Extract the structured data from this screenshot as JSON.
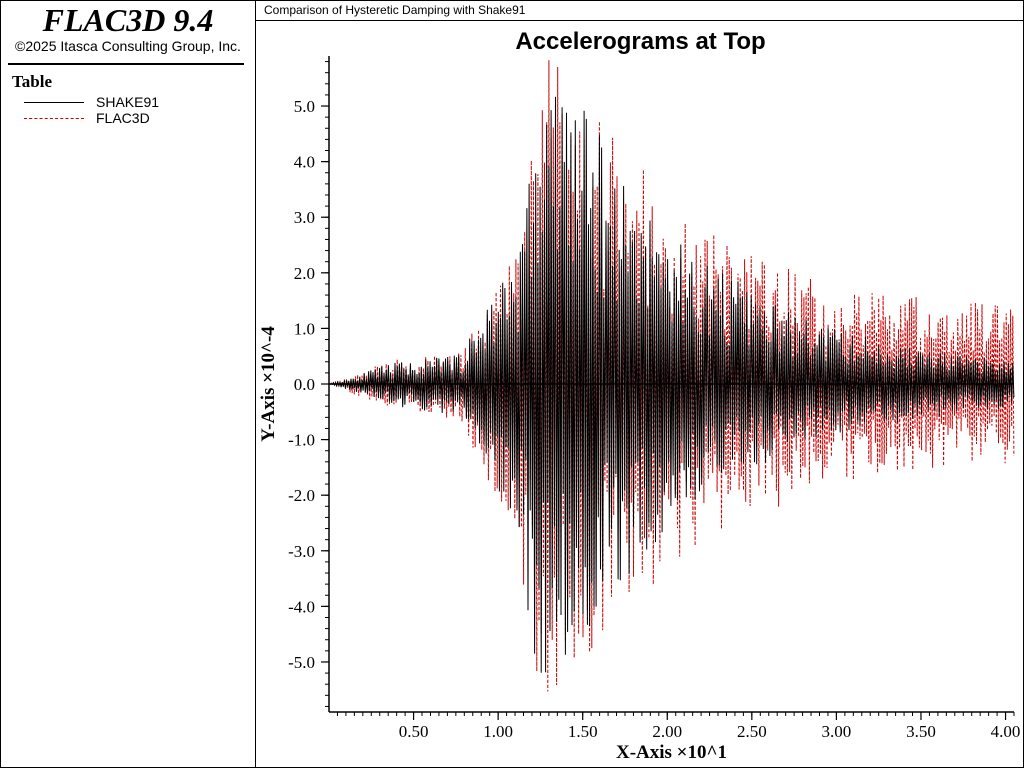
{
  "app": {
    "title": "FLAC3D 9.4",
    "copyright": "©2025 Itasca Consulting Group, Inc.",
    "panel_label": "Table"
  },
  "legend": [
    {
      "label": "SHAKE91",
      "color": "#000000",
      "style": "solid"
    },
    {
      "label": "FLAC3D",
      "color": "#cc0000",
      "style": "dashed"
    }
  ],
  "header": {
    "text": "Comparison of Hysteretic Damping with Shake91"
  },
  "chart_data": {
    "type": "line",
    "title": "Accelerograms at Top",
    "xlabel": "X-Axis ×10^1",
    "ylabel": "Y-Axis ×10^-4",
    "xlim": [
      0.0,
      4.05
    ],
    "ylim": [
      -5.9,
      5.9
    ],
    "x_ticks": [
      0.5,
      1.0,
      1.5,
      2.0,
      2.5,
      3.0,
      3.5,
      4.0
    ],
    "x_tick_labels": [
      "0.50",
      "1.00",
      "1.50",
      "2.00",
      "2.50",
      "3.00",
      "3.50",
      "4.00"
    ],
    "y_ticks": [
      5.0,
      4.0,
      3.0,
      2.0,
      1.0,
      0.0,
      -1.0,
      -2.0,
      -3.0,
      -4.0,
      -5.0
    ],
    "y_tick_labels": [
      "5.0",
      "4.0",
      "3.0",
      "2.0",
      "1.0",
      "0.0",
      "-1.0",
      "-2.0",
      "-3.0",
      "-4.0",
      "-5.0"
    ],
    "grid": false,
    "legend_position": "left panel",
    "series": [
      {
        "name": "SHAKE91",
        "color": "#000000",
        "dashed": false,
        "x": [
          0.0,
          0.2,
          0.4,
          0.6,
          0.8,
          0.9,
          1.0,
          1.1,
          1.15,
          1.2,
          1.25,
          1.3,
          1.35,
          1.4,
          1.45,
          1.5,
          1.55,
          1.6,
          1.7,
          1.8,
          1.9,
          2.0,
          2.2,
          2.4,
          2.6,
          2.8,
          3.0,
          3.2,
          3.4,
          3.6,
          3.8,
          4.0,
          4.05
        ],
        "y_max": [
          0.0,
          0.2,
          0.4,
          0.45,
          0.6,
          1.3,
          1.9,
          2.4,
          3.0,
          4.3,
          4.8,
          5.4,
          5.5,
          5.6,
          5.3,
          5.0,
          4.8,
          4.5,
          4.0,
          3.6,
          3.2,
          2.8,
          2.3,
          1.9,
          1.5,
          1.2,
          1.0,
          0.85,
          0.7,
          0.6,
          0.5,
          0.45,
          0.4
        ],
        "y_min": [
          0.0,
          -0.2,
          -0.4,
          -0.5,
          -0.6,
          -1.5,
          -2.0,
          -2.5,
          -3.5,
          -4.7,
          -5.2,
          -5.4,
          -5.5,
          -5.3,
          -5.0,
          -4.8,
          -4.6,
          -4.2,
          -3.8,
          -3.4,
          -3.0,
          -2.6,
          -2.1,
          -1.7,
          -1.4,
          -1.1,
          -0.9,
          -0.8,
          -0.7,
          -0.6,
          -0.5,
          -0.45,
          -0.4
        ]
      },
      {
        "name": "FLAC3D",
        "color": "#cc0000",
        "dashed": true,
        "x": [
          0.0,
          0.2,
          0.4,
          0.6,
          0.8,
          0.9,
          1.0,
          1.1,
          1.15,
          1.2,
          1.25,
          1.3,
          1.35,
          1.4,
          1.45,
          1.5,
          1.55,
          1.6,
          1.7,
          1.8,
          1.9,
          2.0,
          2.2,
          2.4,
          2.6,
          2.8,
          3.0,
          3.2,
          3.4,
          3.6,
          3.8,
          4.0,
          4.05
        ],
        "y_max": [
          0.0,
          0.25,
          0.45,
          0.5,
          0.7,
          1.6,
          2.2,
          2.5,
          3.2,
          4.4,
          5.0,
          5.9,
          5.7,
          5.8,
          5.4,
          5.2,
          5.0,
          4.8,
          4.5,
          4.2,
          3.8,
          3.3,
          2.8,
          2.5,
          2.2,
          2.0,
          1.8,
          1.7,
          1.6,
          1.55,
          1.5,
          1.45,
          1.3
        ],
        "y_min": [
          0.0,
          -0.25,
          -0.45,
          -0.55,
          -0.7,
          -1.7,
          -2.2,
          -2.6,
          -3.8,
          -5.0,
          -5.5,
          -5.9,
          -5.7,
          -5.5,
          -5.3,
          -5.2,
          -5.0,
          -4.9,
          -4.5,
          -4.2,
          -3.8,
          -3.4,
          -2.9,
          -2.5,
          -2.3,
          -2.0,
          -1.9,
          -1.7,
          -1.6,
          -1.5,
          -1.5,
          -1.45,
          -1.3
        ]
      }
    ]
  }
}
